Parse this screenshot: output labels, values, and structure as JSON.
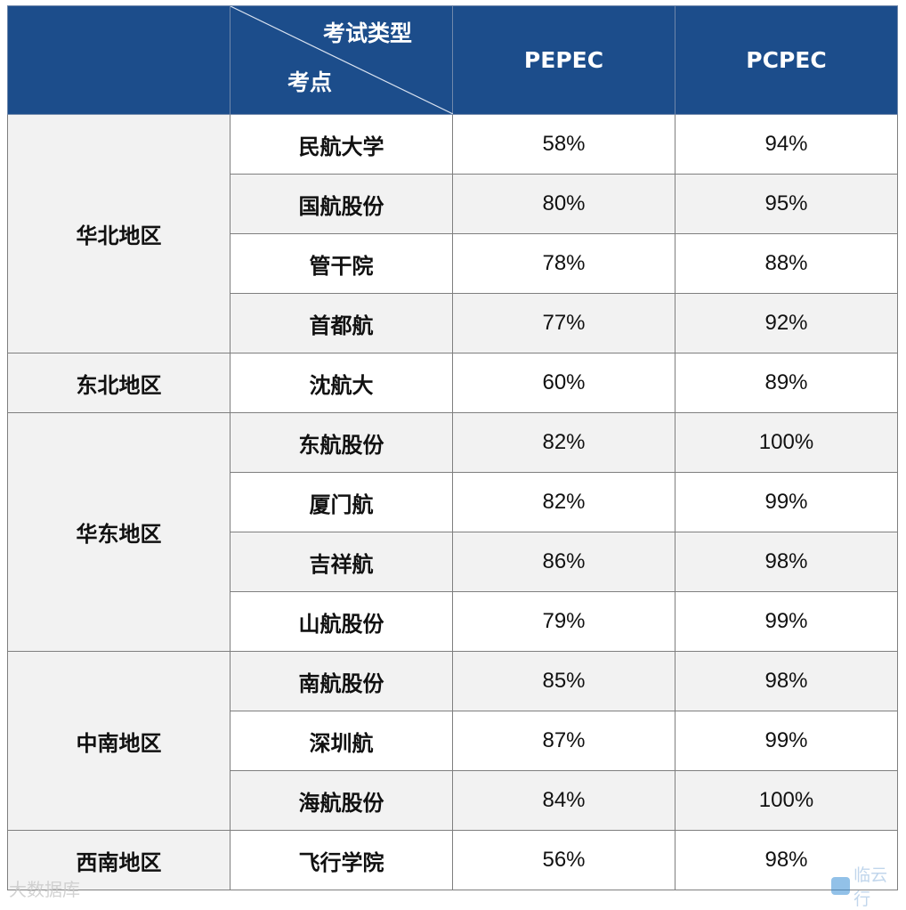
{
  "header": {
    "corner_top": "考试类型",
    "corner_bottom": "考点",
    "col1": "PEPEC",
    "col2": "PCPEC"
  },
  "regions": [
    {
      "name": "华北地区",
      "rows": [
        {
          "site": "民航大学",
          "pepec": "58%",
          "pcpec": "94%"
        },
        {
          "site": "国航股份",
          "pepec": "80%",
          "pcpec": "95%"
        },
        {
          "site": "管干院",
          "pepec": "78%",
          "pcpec": "88%"
        },
        {
          "site": "首都航",
          "pepec": "77%",
          "pcpec": "92%"
        }
      ]
    },
    {
      "name": "东北地区",
      "rows": [
        {
          "site": "沈航大",
          "pepec": "60%",
          "pcpec": "89%"
        }
      ]
    },
    {
      "name": "华东地区",
      "rows": [
        {
          "site": "东航股份",
          "pepec": "82%",
          "pcpec": "100%"
        },
        {
          "site": "厦门航",
          "pepec": "82%",
          "pcpec": "99%"
        },
        {
          "site": "吉祥航",
          "pepec": "86%",
          "pcpec": "98%"
        },
        {
          "site": "山航股份",
          "pepec": "79%",
          "pcpec": "99%"
        }
      ]
    },
    {
      "name": "中南地区",
      "rows": [
        {
          "site": "南航股份",
          "pepec": "85%",
          "pcpec": "98%"
        },
        {
          "site": "深圳航",
          "pepec": "87%",
          "pcpec": "99%"
        },
        {
          "site": "海航股份",
          "pepec": "84%",
          "pcpec": "100%"
        }
      ]
    },
    {
      "name": "西南地区",
      "rows": [
        {
          "site": "飞行学院",
          "pepec": "56%",
          "pcpec": "98%"
        }
      ]
    }
  ],
  "watermarks": {
    "left": "大数据库",
    "right": "临云行"
  },
  "colors": {
    "header_bg": "#1c4d8b",
    "stripe_bg": "#f2f2f2"
  }
}
